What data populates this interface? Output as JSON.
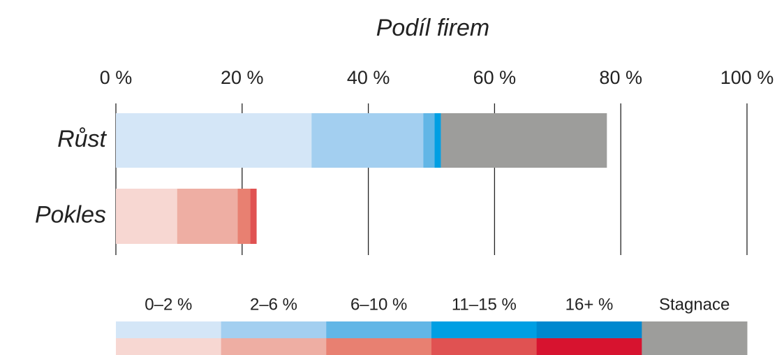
{
  "chart_data": {
    "type": "stacked-barh",
    "axis_label": "Podíl firem",
    "categories": [
      "Růst",
      "Pokles"
    ],
    "category_colors": [
      "#3aa6d8",
      "#e0415a"
    ],
    "xlim": [
      0,
      100
    ],
    "xticks": [
      {
        "value": 0,
        "label": "0 %"
      },
      {
        "value": 20,
        "label": "20 %"
      },
      {
        "value": 40,
        "label": "40 %"
      },
      {
        "value": 60,
        "label": "60 %"
      },
      {
        "value": 80,
        "label": "80 %"
      },
      {
        "value": 100,
        "label": "100 %"
      }
    ],
    "grid": true,
    "series": [
      {
        "name": "0–2 %",
        "colors": [
          "#d4e6f7",
          "#f7d7d2"
        ],
        "values": [
          31.0,
          9.7
        ]
      },
      {
        "name": "2–6 %",
        "colors": [
          "#a3cff0",
          "#eeaea3"
        ],
        "values": [
          17.7,
          9.6
        ]
      },
      {
        "name": "6–10 %",
        "colors": [
          "#62b6e6",
          "#e88071"
        ],
        "values": [
          1.8,
          2.0
        ]
      },
      {
        "name": "11–15 %",
        "colors": [
          "#009fe3",
          "#e05252"
        ],
        "values": [
          1.0,
          1.0
        ]
      },
      {
        "name": "16+ %",
        "colors": [
          "#0088cf",
          "#d7132f"
        ],
        "values": [
          0,
          0
        ]
      },
      {
        "name": "Stagnace",
        "colors": [
          "#9d9d9b",
          "#9d9d9b"
        ],
        "values": [
          26.3,
          null
        ]
      }
    ]
  }
}
